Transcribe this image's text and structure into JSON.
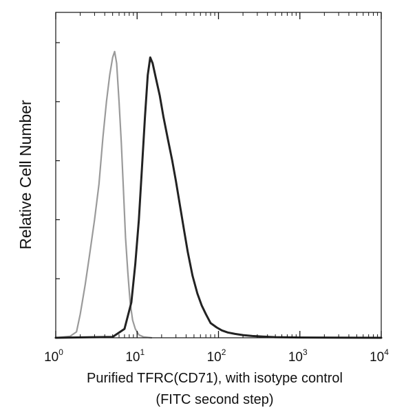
{
  "chart_data": {
    "type": "line",
    "title": "",
    "xlabel": "Purified TFRC(CD71), with isotype control",
    "xlabel_line2": "(FITC second step)",
    "ylabel": "Relative Cell Number",
    "x_scale": "log",
    "xlim": [
      1,
      10000
    ],
    "ylim": [
      0,
      1
    ],
    "grid": false,
    "legend": "none",
    "x_ticks": [
      {
        "base": "10",
        "exp": "0",
        "value": 1
      },
      {
        "base": "10",
        "exp": "1",
        "value": 10
      },
      {
        "base": "10",
        "exp": "2",
        "value": 100
      },
      {
        "base": "10",
        "exp": "3",
        "value": 1000
      },
      {
        "base": "10",
        "exp": "4",
        "value": 10000
      }
    ],
    "series": [
      {
        "role": "isotype control",
        "color": "#9a9a9a",
        "x": [
          1.0,
          1.5,
          1.8,
          2.0,
          2.3,
          2.6,
          3.0,
          3.4,
          3.8,
          4.2,
          4.6,
          5.0,
          5.3,
          5.6,
          6.0,
          6.4,
          6.8,
          7.2,
          7.7,
          8.2,
          8.8,
          9.5,
          10.5,
          12.0,
          15.0
        ],
        "y": [
          0.0,
          0.005,
          0.02,
          0.08,
          0.18,
          0.28,
          0.4,
          0.52,
          0.68,
          0.8,
          0.89,
          0.95,
          0.97,
          0.93,
          0.8,
          0.66,
          0.5,
          0.34,
          0.22,
          0.12,
          0.06,
          0.03,
          0.01,
          0.003,
          0.0
        ]
      },
      {
        "role": "TFRC(CD71)",
        "color": "#222222",
        "x": [
          1.0,
          5.0,
          7.0,
          8.5,
          9.5,
          10.5,
          11.5,
          12.5,
          13.5,
          14.5,
          15.5,
          17.0,
          19.0,
          21.0,
          24.0,
          27.0,
          30.0,
          34.0,
          38.0,
          42.0,
          48.0,
          55.0,
          62.0,
          70.0,
          80.0,
          95.0,
          110.0,
          130.0,
          160.0,
          200.0,
          260.0,
          350.0,
          500.0,
          1000.0,
          10000.0
        ],
        "y": [
          0.0,
          0.003,
          0.03,
          0.12,
          0.25,
          0.4,
          0.58,
          0.75,
          0.89,
          0.95,
          0.93,
          0.88,
          0.82,
          0.75,
          0.67,
          0.6,
          0.53,
          0.44,
          0.36,
          0.29,
          0.21,
          0.15,
          0.11,
          0.08,
          0.05,
          0.035,
          0.025,
          0.018,
          0.013,
          0.009,
          0.006,
          0.004,
          0.002,
          0.001,
          0.0
        ]
      }
    ]
  }
}
